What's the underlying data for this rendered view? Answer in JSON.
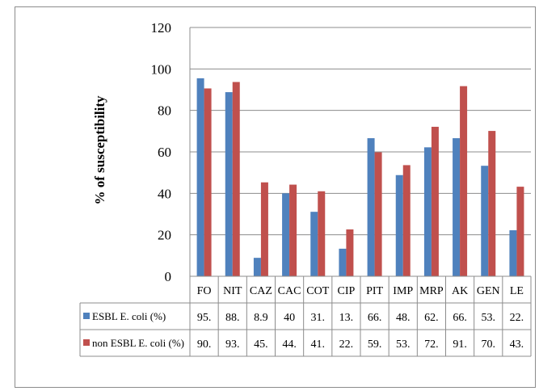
{
  "chart_data": {
    "type": "bar",
    "title": "",
    "xlabel": "",
    "ylabel": "% of susceptibility",
    "ylim": [
      0,
      120
    ],
    "yticks": [
      0,
      20,
      40,
      60,
      80,
      100,
      120
    ],
    "ytick_labels": [
      "0",
      "20",
      "40",
      "60",
      "80",
      "100",
      "120"
    ],
    "grid": true,
    "legend": "data table rows below the chart",
    "categories": [
      "FO",
      "NIT",
      "CAZ",
      "CAC",
      "COT",
      "CIP",
      "PIT",
      "IMP",
      "MRP",
      "AK",
      "GEN",
      "LE"
    ],
    "series": [
      {
        "name": "ESBL E. coli (%)",
        "color": "#4f81bd",
        "values": [
          95.5,
          88.8,
          8.9,
          40,
          31.1,
          13.3,
          66.6,
          48.8,
          62.2,
          66.6,
          53.3,
          22.2
        ],
        "table_labels": [
          "95.",
          "88.",
          "8.9",
          "40",
          "31.",
          "13.",
          "66.",
          "48.",
          "62.",
          "66.",
          "53.",
          "22."
        ]
      },
      {
        "name": "non ESBL E. coli (%)",
        "color": "#c0504d",
        "values": [
          90.6,
          93.7,
          45.3,
          44.2,
          41.0,
          22.6,
          59.8,
          53.6,
          72.1,
          91.7,
          70.1,
          43.2
        ],
        "table_labels": [
          "90.",
          "93.",
          "45.",
          "44.",
          "41.",
          "22.",
          "59.",
          "53.",
          "72.",
          "91.",
          "70.",
          "43."
        ]
      }
    ]
  }
}
